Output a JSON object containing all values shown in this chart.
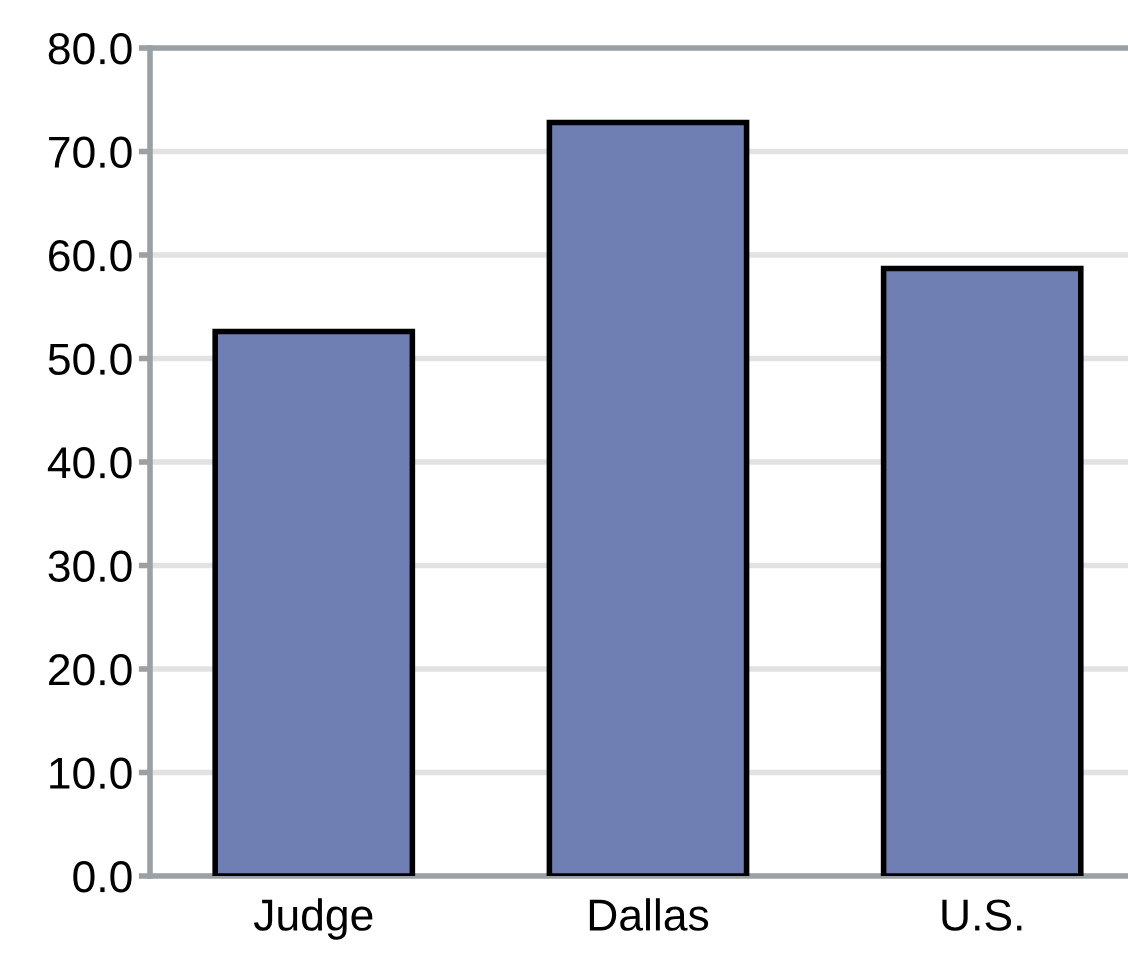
{
  "chart_data": {
    "type": "bar",
    "categories": [
      "Judge",
      "Dallas",
      "U.S."
    ],
    "values": [
      52.6,
      72.8,
      58.7
    ],
    "color": "#6f7fb3",
    "ylim": [
      0,
      80
    ],
    "yticks": [
      {
        "value": 0,
        "label": "0.0"
      },
      {
        "value": 10,
        "label": "10.0"
      },
      {
        "value": 20,
        "label": "20.0"
      },
      {
        "value": 30,
        "label": "30.0"
      },
      {
        "value": 40,
        "label": "40.0"
      },
      {
        "value": 50,
        "label": "50.0"
      },
      {
        "value": 60,
        "label": "60.0"
      },
      {
        "value": 70,
        "label": "70.0"
      },
      {
        "value": 80,
        "label": "80.0"
      }
    ],
    "grid": "y",
    "legend": false
  }
}
